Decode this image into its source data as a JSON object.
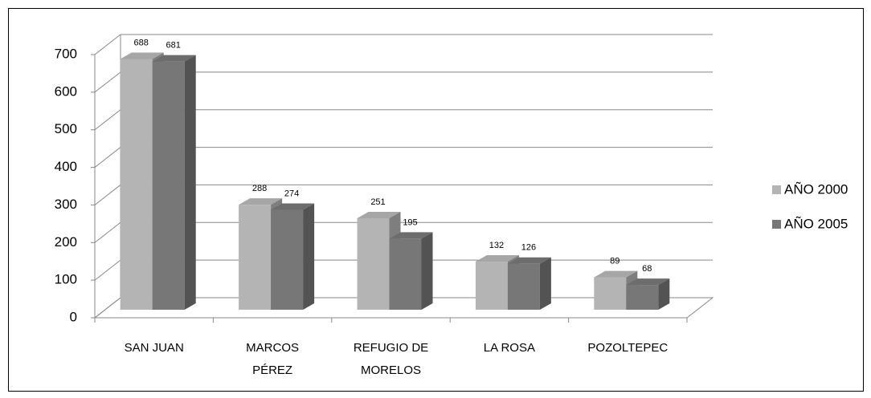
{
  "chart_data": {
    "type": "bar3d",
    "categories": [
      "SAN JUAN",
      "MARCOS PÉREZ",
      "REFUGIO DE MORELOS",
      "LA ROSA",
      "POZOLTEPEC"
    ],
    "series": [
      {
        "name": "AÑO 2000",
        "color": "#b4b4b4",
        "values": [
          688,
          288,
          251,
          132,
          89
        ]
      },
      {
        "name": "AÑO 2005",
        "color": "#777777",
        "values": [
          681,
          274,
          195,
          126,
          68
        ]
      }
    ],
    "ylim": [
      0,
      700
    ],
    "yticks": [
      0,
      100,
      200,
      300,
      400,
      500,
      600,
      700
    ],
    "grid": true,
    "legend": "right"
  }
}
